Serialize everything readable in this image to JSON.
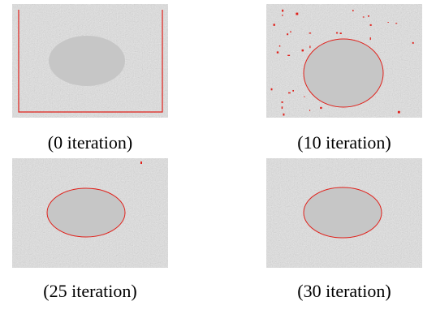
{
  "panels": [
    {
      "caption": "(0 iteration)"
    },
    {
      "caption": "(10 iteration)"
    },
    {
      "caption": "(25 iteration)"
    },
    {
      "caption": "(30 iteration)"
    }
  ]
}
